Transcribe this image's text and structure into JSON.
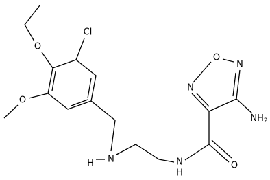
{
  "atoms": {
    "chlorine": "Cl",
    "ethoxy_oxygen": "O",
    "methoxy_oxygen": "O",
    "amine_nitrogen": "N",
    "amine_hydrogen": "H",
    "amide_nitrogen": "N",
    "amide_hydrogen": "H",
    "carbonyl_oxygen": "O",
    "ring_oxygen": "O",
    "ring_nitrogen_right": "N",
    "ring_nitrogen_left": "N",
    "amino_group": {
      "label": "NH",
      "subscript": "2"
    }
  }
}
